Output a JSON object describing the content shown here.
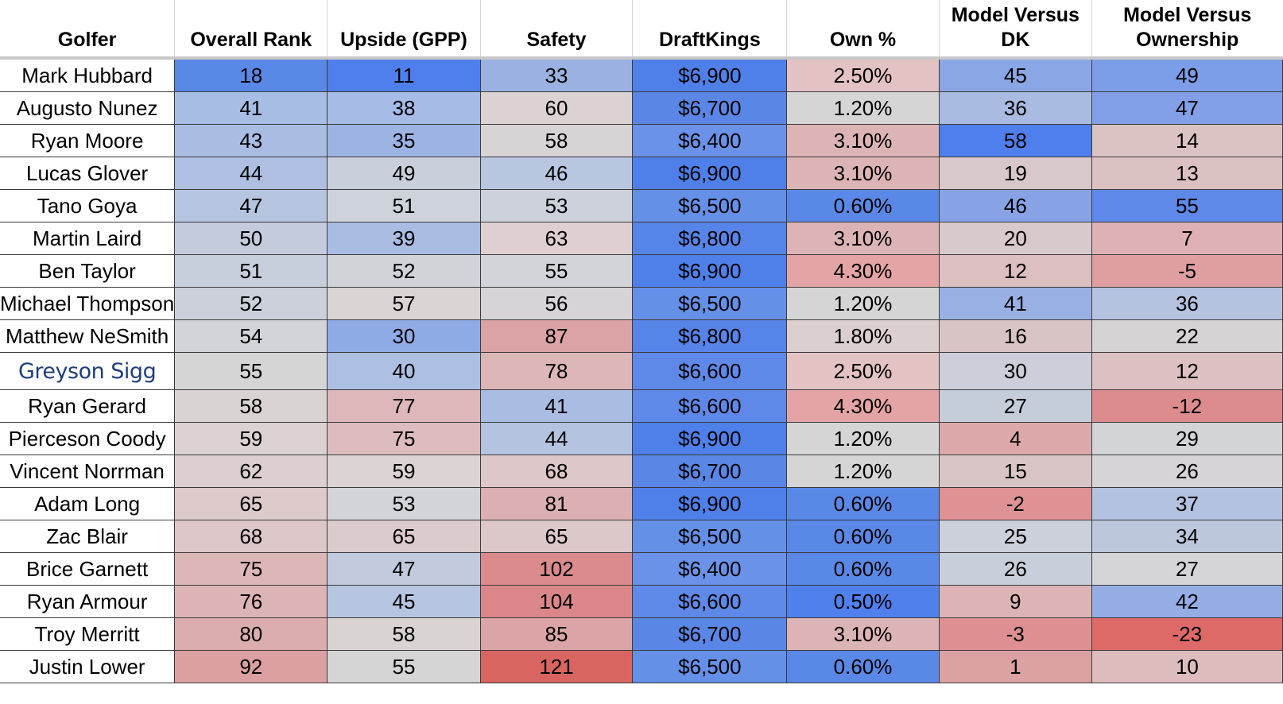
{
  "table": {
    "headers": [
      "Golfer",
      "Overall Rank",
      "Upside (GPP)",
      "Safety",
      "DraftKings",
      "Own %",
      "Model Versus DK",
      "Model Versus Ownership"
    ],
    "rows": [
      {
        "golfer": "Mark Hubbard",
        "overall_rank": "18",
        "upside": "11",
        "safety": "33",
        "draftkings": "$6,900",
        "own_pct": "2.50%",
        "model_vs_dk": "45",
        "model_vs_own": "49",
        "colors": [
          "#5a88e6",
          "#4f7fec",
          "#9ab1e1",
          "#4f80ea",
          "#e3c2c4",
          "#8aa6e4",
          "#7c9de7"
        ]
      },
      {
        "golfer": "Augusto Nunez",
        "overall_rank": "41",
        "upside": "38",
        "safety": "60",
        "draftkings": "$6,700",
        "own_pct": "1.20%",
        "model_vs_dk": "36",
        "model_vs_own": "47",
        "colors": [
          "#a8bde4",
          "#a6bbe6",
          "#dcd2d3",
          "#5a86e6",
          "#d6d5d6",
          "#aabbe1",
          "#829fe7"
        ]
      },
      {
        "golfer": "Ryan Moore",
        "overall_rank": "43",
        "upside": "35",
        "safety": "58",
        "draftkings": "$6,400",
        "own_pct": "3.10%",
        "model_vs_dk": "58",
        "model_vs_own": "14",
        "colors": [
          "#a9bde3",
          "#9db3e4",
          "#d8d4d5",
          "#6a92e8",
          "#ddb4b6",
          "#4f7fec",
          "#dbc3c4"
        ]
      },
      {
        "golfer": "Lucas Glover",
        "overall_rank": "44",
        "upside": "49",
        "safety": "46",
        "draftkings": "$6,900",
        "own_pct": "3.10%",
        "model_vs_dk": "19",
        "model_vs_own": "13",
        "colors": [
          "#aebfe2",
          "#c9cfdb",
          "#b9c6e0",
          "#4f80ea",
          "#ddb4b6",
          "#d8c8c9",
          "#dcc1c3"
        ]
      },
      {
        "golfer": "Tano Goya",
        "overall_rank": "47",
        "upside": "51",
        "safety": "53",
        "draftkings": "$6,500",
        "own_pct": "0.60%",
        "model_vs_dk": "46",
        "model_vs_own": "55",
        "colors": [
          "#b5c5e0",
          "#ced2da",
          "#cdd1db",
          "#6590e8",
          "#5a88e6",
          "#87a3e6",
          "#5f89e8"
        ]
      },
      {
        "golfer": "Martin Laird",
        "overall_rank": "50",
        "upside": "39",
        "safety": "63",
        "draftkings": "$6,800",
        "own_pct": "3.10%",
        "model_vs_dk": "20",
        "model_vs_own": "7",
        "colors": [
          "#c3cbdd",
          "#a9bde3",
          "#dfcfd0",
          "#5784e8",
          "#ddb4b6",
          "#d8c9ca",
          "#deb2b4"
        ]
      },
      {
        "golfer": "Ben Taylor",
        "overall_rank": "51",
        "upside": "52",
        "safety": "55",
        "draftkings": "$6,900",
        "own_pct": "4.30%",
        "model_vs_dk": "12",
        "model_vs_own": "-5",
        "colors": [
          "#c7cedc",
          "#d2d3d9",
          "#d3d4d9",
          "#4f80ea",
          "#e4a4a6",
          "#dcbfc0",
          "#df9fa1"
        ]
      },
      {
        "golfer": "Michael Thompson",
        "overall_rank": "52",
        "upside": "57",
        "safety": "56",
        "draftkings": "$6,500",
        "own_pct": "1.20%",
        "model_vs_dk": "41",
        "model_vs_own": "36",
        "colors": [
          "#cbd0db",
          "#dad4d5",
          "#d6d4d6",
          "#6590e8",
          "#d6d5d6",
          "#98b0e3",
          "#b5c3e0"
        ]
      },
      {
        "golfer": "Matthew NeSmith",
        "overall_rank": "54",
        "upside": "30",
        "safety": "87",
        "draftkings": "$6,800",
        "own_pct": "1.80%",
        "model_vs_dk": "16",
        "model_vs_own": "22",
        "colors": [
          "#d3d4d9",
          "#8fabe5",
          "#dba3a5",
          "#5784e8",
          "#dccfd0",
          "#d9c4c5",
          "#d6d3d4"
        ]
      },
      {
        "golfer": "Greyson Sigg",
        "overall_rank": "55",
        "upside": "40",
        "safety": "78",
        "draftkings": "$6,600",
        "own_pct": "2.50%",
        "model_vs_dk": "30",
        "model_vs_own": "12",
        "colors": [
          "#d6d5d6",
          "#adbfe2",
          "#ddb6b8",
          "#5f89e8",
          "#e3c2c4",
          "#cccfd9",
          "#dcc0c2"
        ]
      },
      {
        "golfer": "Ryan Gerard",
        "overall_rank": "58",
        "upside": "77",
        "safety": "41",
        "draftkings": "$6,600",
        "own_pct": "4.30%",
        "model_vs_dk": "27",
        "model_vs_own": "-12",
        "colors": [
          "#dad3d4",
          "#ddb7b9",
          "#a9bde3",
          "#5f89e8",
          "#e4a4a6",
          "#c6cdda",
          "#dd8c8e"
        ]
      },
      {
        "golfer": "Pierceson Coody",
        "overall_rank": "59",
        "upside": "75",
        "safety": "44",
        "draftkings": "$6,900",
        "own_pct": "1.20%",
        "model_vs_dk": "4",
        "model_vs_own": "29",
        "colors": [
          "#dcd2d3",
          "#dcbcbe",
          "#b4c4e0",
          "#4f80ea",
          "#d6d5d6",
          "#dda8aa",
          "#d3d4d8"
        ]
      },
      {
        "golfer": "Vincent Norrman",
        "overall_rank": "62",
        "upside": "59",
        "safety": "68",
        "draftkings": "$6,700",
        "own_pct": "1.20%",
        "model_vs_dk": "15",
        "model_vs_own": "26",
        "colors": [
          "#ddcfd0",
          "#dbd3d4",
          "#dec7c8",
          "#5a86e6",
          "#d6d5d6",
          "#d9c5c6",
          "#d6d4d6"
        ]
      },
      {
        "golfer": "Adam Long",
        "overall_rank": "65",
        "upside": "53",
        "safety": "81",
        "draftkings": "$6,900",
        "own_pct": "0.60%",
        "model_vs_dk": "-2",
        "model_vs_own": "37",
        "colors": [
          "#ddcacb",
          "#d3d4d9",
          "#dcb0b2",
          "#4f80ea",
          "#5a88e6",
          "#de9294",
          "#b2c2e0"
        ]
      },
      {
        "golfer": "Zac Blair",
        "overall_rank": "68",
        "upside": "65",
        "safety": "65",
        "draftkings": "$6,500",
        "own_pct": "0.60%",
        "model_vs_dk": "25",
        "model_vs_own": "34",
        "colors": [
          "#ddc6c8",
          "#dccbcc",
          "#ddc8c9",
          "#6590e8",
          "#5a88e6",
          "#ccd0da",
          "#bcc7de"
        ]
      },
      {
        "golfer": "Brice Garnett",
        "overall_rank": "75",
        "upside": "47",
        "safety": "102",
        "draftkings": "$6,400",
        "own_pct": "0.60%",
        "model_vs_dk": "26",
        "model_vs_own": "27",
        "colors": [
          "#ddb6b8",
          "#c1cbdd",
          "#dc8b8d",
          "#6a92e8",
          "#5a88e6",
          "#c9cfda",
          "#d5d4d7"
        ]
      },
      {
        "golfer": "Ryan Armour",
        "overall_rank": "76",
        "upside": "45",
        "safety": "104",
        "draftkings": "$6,600",
        "own_pct": "0.50%",
        "model_vs_dk": "9",
        "model_vs_own": "42",
        "colors": [
          "#ddb4b6",
          "#b6c5e0",
          "#db8789",
          "#5f89e8",
          "#4f80ec",
          "#dcb4b6",
          "#94ade5"
        ]
      },
      {
        "golfer": "Troy Merritt",
        "overall_rank": "80",
        "upside": "58",
        "safety": "85",
        "draftkings": "$6,700",
        "own_pct": "3.10%",
        "model_vs_dk": "-3",
        "model_vs_own": "-23",
        "colors": [
          "#dcadaf",
          "#dad3d4",
          "#dba5a7",
          "#5a86e6",
          "#ddb4b6",
          "#de8f91",
          "#dd6a66"
        ]
      },
      {
        "golfer": "Justin Lower",
        "overall_rank": "92",
        "upside": "55",
        "safety": "121",
        "draftkings": "$6,500",
        "own_pct": "0.60%",
        "model_vs_dk": "1",
        "model_vs_own": "10",
        "colors": [
          "#dca0a2",
          "#d6d5d6",
          "#d96560",
          "#6590e8",
          "#5a88e6",
          "#dca1a3",
          "#ddbcbe"
        ]
      }
    ]
  }
}
